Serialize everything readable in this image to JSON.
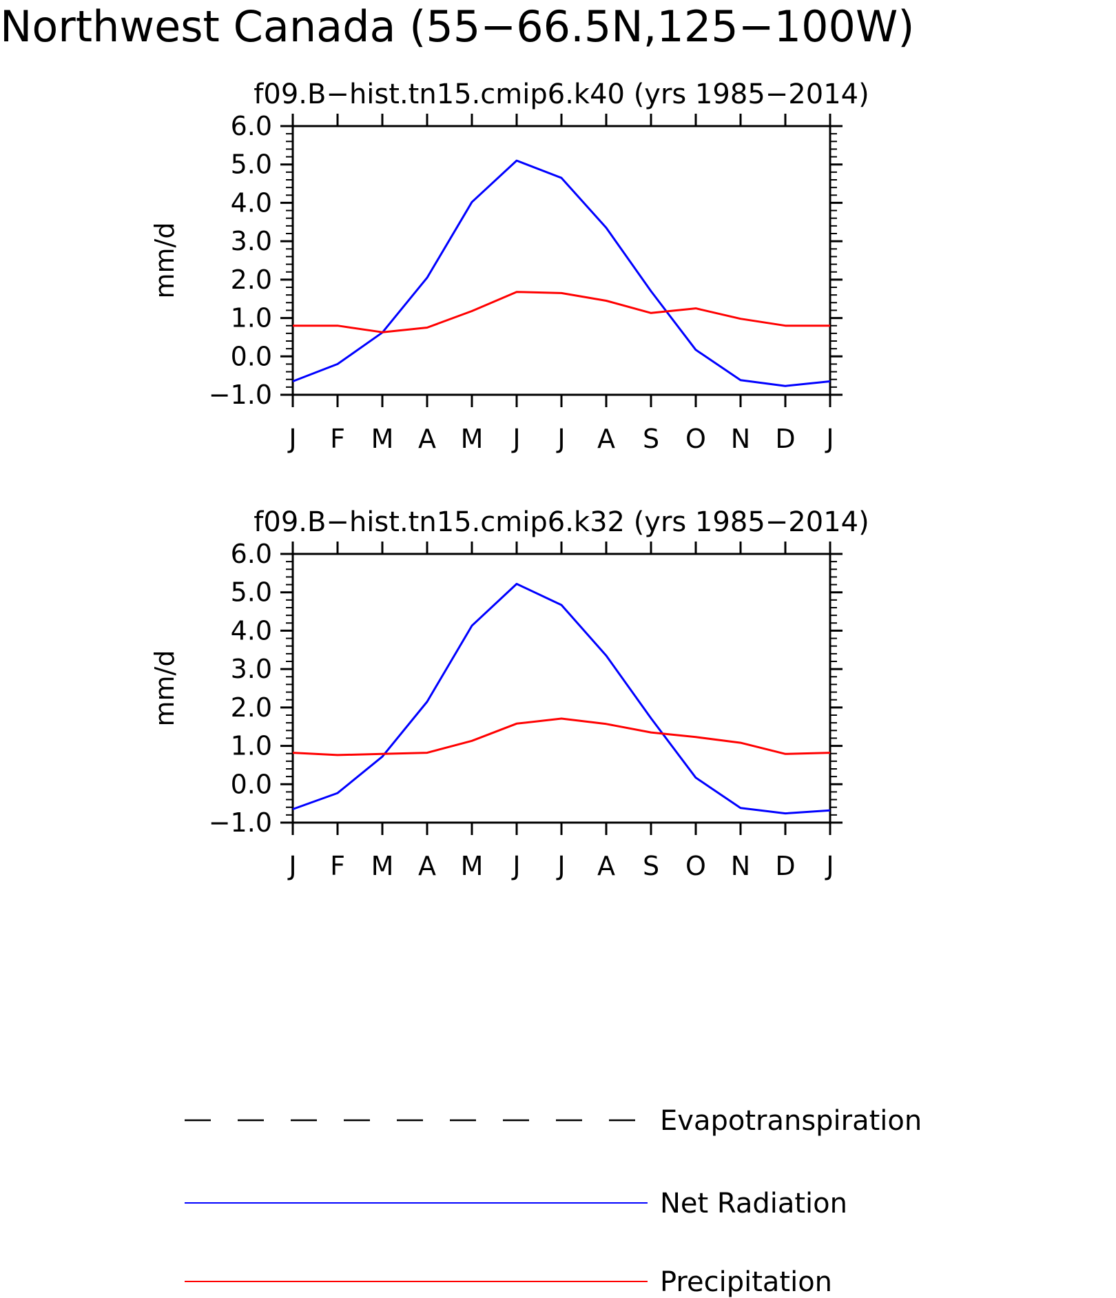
{
  "title": "Northwest Canada (55−66.5N,125−100W)",
  "colors": {
    "net_radiation": "#0000ff",
    "precipitation": "#ff0000",
    "evapotranspiration": "#000000",
    "axis": "#000000"
  },
  "legend": [
    {
      "label": "Evapotranspiration",
      "style": "dashed",
      "color": "#000000"
    },
    {
      "label": "Net Radiation",
      "style": "solid",
      "color": "#0000ff"
    },
    {
      "label": "Precipitation",
      "style": "solid",
      "color": "#ff0000"
    }
  ],
  "chart_data": [
    {
      "type": "line",
      "title": "f09.B−hist.tn15.cmip6.k40 (yrs 1985−2014)",
      "ylabel": "mm/d",
      "xlabel": "",
      "categories": [
        "J",
        "F",
        "M",
        "A",
        "M",
        "J",
        "J",
        "A",
        "S",
        "O",
        "N",
        "D",
        "J"
      ],
      "ylim": [
        -1.0,
        6.0
      ],
      "yticks": [
        "−1.0",
        "0.0",
        "1.0",
        "2.0",
        "3.0",
        "4.0",
        "5.0",
        "6.0"
      ],
      "series": [
        {
          "name": "Net Radiation",
          "color": "#0000ff",
          "values": [
            -0.65,
            -0.2,
            0.62,
            2.05,
            4.02,
            5.1,
            4.65,
            3.35,
            1.7,
            0.17,
            -0.62,
            -0.77,
            -0.65
          ]
        },
        {
          "name": "Precipitation",
          "color": "#ff0000",
          "values": [
            0.8,
            0.8,
            0.63,
            0.75,
            1.18,
            1.68,
            1.65,
            1.45,
            1.13,
            1.25,
            0.98,
            0.8,
            0.8
          ]
        }
      ]
    },
    {
      "type": "line",
      "title": "f09.B−hist.tn15.cmip6.k32 (yrs 1985−2014)",
      "ylabel": "mm/d",
      "xlabel": "",
      "categories": [
        "J",
        "F",
        "M",
        "A",
        "M",
        "J",
        "J",
        "A",
        "S",
        "O",
        "N",
        "D",
        "J"
      ],
      "ylim": [
        -1.0,
        6.0
      ],
      "yticks": [
        "−1.0",
        "0.0",
        "1.0",
        "2.0",
        "3.0",
        "4.0",
        "5.0",
        "6.0"
      ],
      "series": [
        {
          "name": "Net Radiation",
          "color": "#0000ff",
          "values": [
            -0.65,
            -0.23,
            0.72,
            2.15,
            4.13,
            5.22,
            4.67,
            3.35,
            1.72,
            0.17,
            -0.62,
            -0.76,
            -0.68
          ]
        },
        {
          "name": "Precipitation",
          "color": "#ff0000",
          "values": [
            0.82,
            0.76,
            0.79,
            0.82,
            1.13,
            1.58,
            1.71,
            1.57,
            1.35,
            1.23,
            1.08,
            0.79,
            0.82
          ]
        }
      ]
    }
  ]
}
